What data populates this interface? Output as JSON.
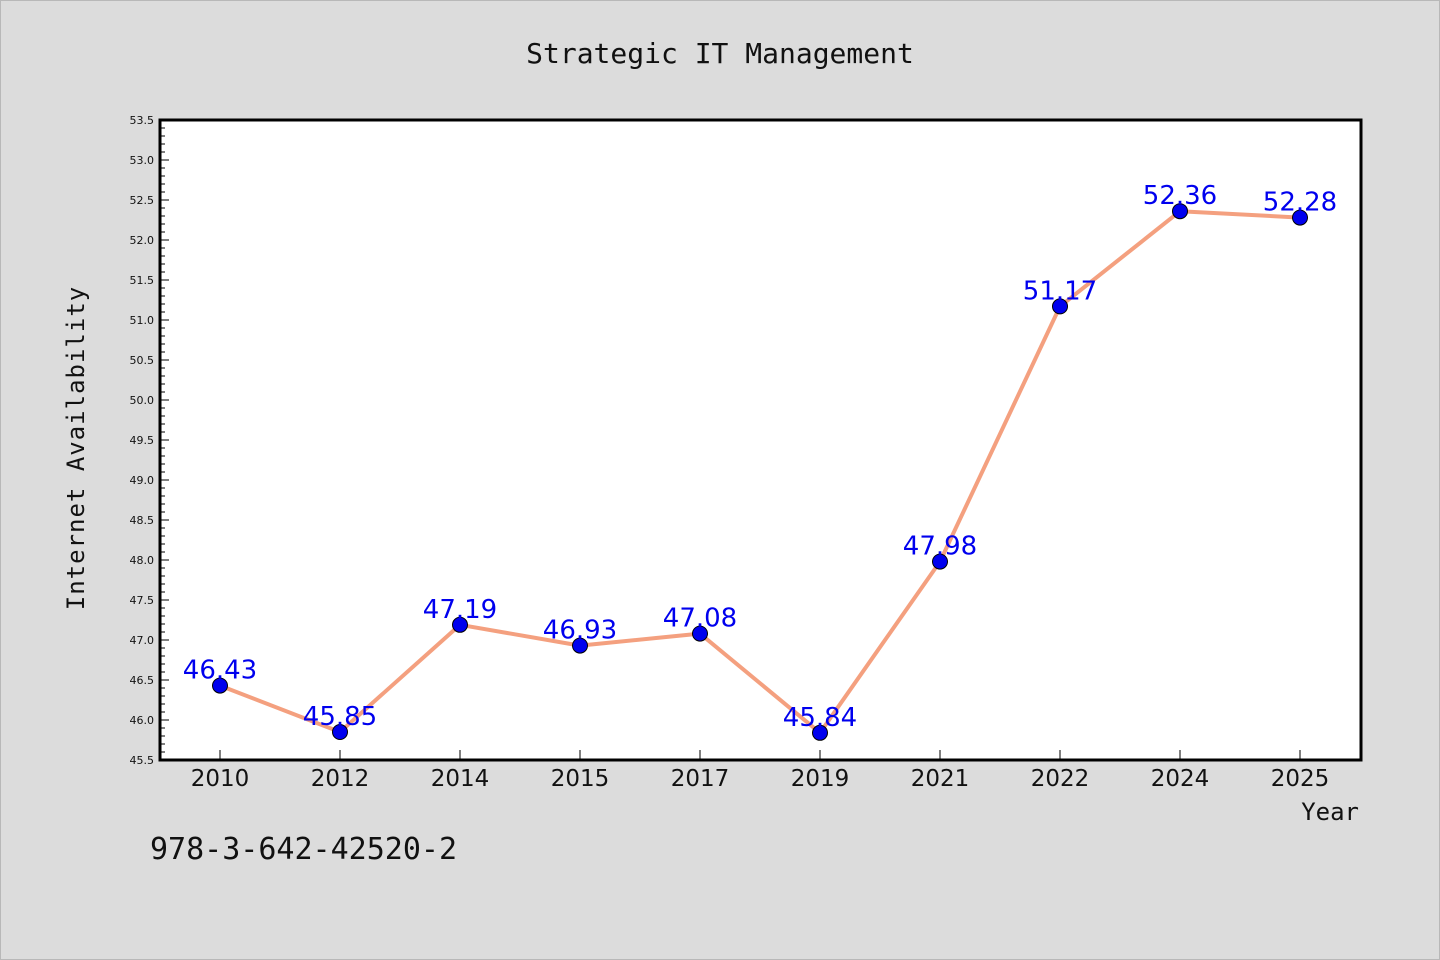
{
  "footer_text": "978-3-642-42520-2",
  "colors": {
    "line": "#f4a07f",
    "marker": "#0000ee",
    "data_label": "#0000ee",
    "plot_background": "#ffffff",
    "page_background": "#dcdcdc"
  },
  "chart_data": {
    "type": "line",
    "title": "Strategic IT Management",
    "xlabel": "Year",
    "ylabel": "Internet Availability",
    "categories": [
      "2010",
      "2012",
      "2014",
      "2015",
      "2017",
      "2019",
      "2021",
      "2022",
      "2024",
      "2025"
    ],
    "series": [
      {
        "values": [
          46.43,
          45.85,
          47.19,
          46.93,
          47.08,
          45.84,
          47.98,
          51.17,
          52.36,
          52.28
        ],
        "labels": [
          "46.43",
          "45.85",
          "47.19",
          "46.93",
          "47.08",
          "45.84",
          "47.98",
          "51.17",
          "52.36",
          "52.28"
        ]
      }
    ],
    "ylim": [
      45.5,
      53.5
    ],
    "yticks": [
      "45.5",
      "46.0",
      "46.5",
      "47.0",
      "47.5",
      "48.0",
      "48.5",
      "49.0",
      "49.5",
      "50.0",
      "50.5",
      "51.0",
      "51.5",
      "52.0",
      "52.5",
      "53.0",
      "53.5"
    ],
    "grid": false,
    "legend": "none"
  }
}
